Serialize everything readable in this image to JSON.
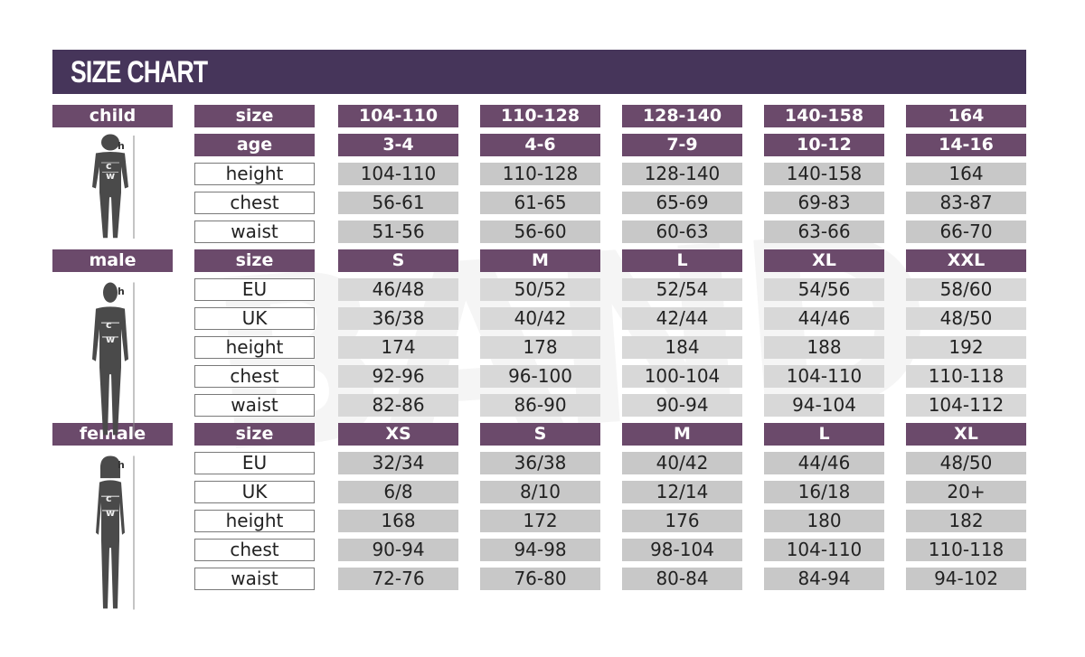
{
  "title": "SIZE CHART",
  "watermark": "BAND",
  "colors": {
    "header": "#46355a",
    "label_purple": "#6b4a6b",
    "cell_gray": "#c8c8c8"
  },
  "sections": [
    {
      "name": "child",
      "figure": "child-silhouette-icon",
      "rows": [
        {
          "label": "size",
          "type": "header",
          "values": [
            "104-110",
            "110-128",
            "128-140",
            "140-158",
            "164"
          ]
        },
        {
          "label": "age",
          "type": "header",
          "values": [
            "3-4",
            "4-6",
            "7-9",
            "10-12",
            "14-16"
          ]
        },
        {
          "label": "height",
          "type": "data",
          "values": [
            "104-110",
            "110-128",
            "128-140",
            "140-158",
            "164"
          ]
        },
        {
          "label": "chest",
          "type": "data",
          "values": [
            "56-61",
            "61-65",
            "65-69",
            "69-83",
            "83-87"
          ]
        },
        {
          "label": "waist",
          "type": "data",
          "values": [
            "51-56",
            "56-60",
            "60-63",
            "63-66",
            "66-70"
          ]
        }
      ]
    },
    {
      "name": "male",
      "figure": "male-silhouette-icon",
      "rows": [
        {
          "label": "size",
          "type": "header",
          "values": [
            "S",
            "M",
            "L",
            "XL",
            "XXL"
          ]
        },
        {
          "label": "EU",
          "type": "data",
          "values": [
            "46/48",
            "50/52",
            "52/54",
            "54/56",
            "58/60"
          ]
        },
        {
          "label": "UK",
          "type": "data",
          "values": [
            "36/38",
            "40/42",
            "42/44",
            "44/46",
            "48/50"
          ]
        },
        {
          "label": "height",
          "type": "data",
          "values": [
            "174",
            "178",
            "184",
            "188",
            "192"
          ]
        },
        {
          "label": "chest",
          "type": "data",
          "values": [
            "92-96",
            "96-100",
            "100-104",
            "104-110",
            "110-118"
          ]
        },
        {
          "label": "waist",
          "type": "data",
          "values": [
            "82-86",
            "86-90",
            "90-94",
            "94-104",
            "104-112"
          ]
        }
      ]
    },
    {
      "name": "female",
      "figure": "female-silhouette-icon",
      "rows": [
        {
          "label": "size",
          "type": "header",
          "values": [
            "XS",
            "S",
            "M",
            "L",
            "XL"
          ]
        },
        {
          "label": "EU",
          "type": "data",
          "values": [
            "32/34",
            "36/38",
            "40/42",
            "44/46",
            "48/50"
          ]
        },
        {
          "label": "UK",
          "type": "data",
          "values": [
            "6/8",
            "8/10",
            "12/14",
            "16/18",
            "20+"
          ]
        },
        {
          "label": "height",
          "type": "data",
          "values": [
            "168",
            "172",
            "176",
            "180",
            "182"
          ]
        },
        {
          "label": "chest",
          "type": "data",
          "values": [
            "90-94",
            "94-98",
            "98-104",
            "104-110",
            "110-118"
          ]
        },
        {
          "label": "waist",
          "type": "data",
          "values": [
            "72-76",
            "76-80",
            "80-84",
            "84-94",
            "94-102"
          ]
        }
      ]
    }
  ],
  "figure_marks": {
    "h": "h",
    "c": "c",
    "w": "w"
  }
}
